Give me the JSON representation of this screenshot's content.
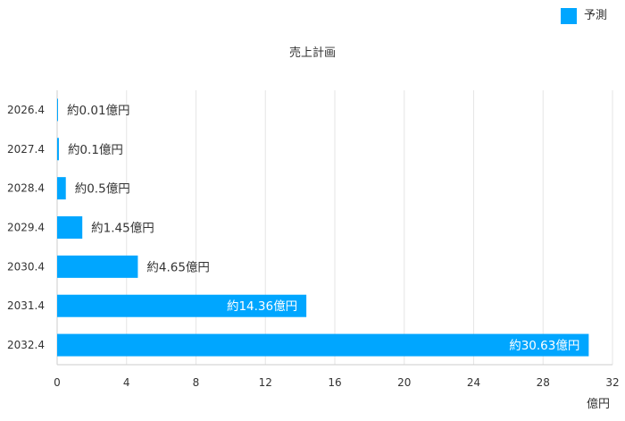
{
  "legend": {
    "label": "予測",
    "color": "#00A6FF"
  },
  "chart_data": {
    "type": "bar",
    "orientation": "horizontal",
    "title": "売上計画",
    "xlabel": "億円",
    "ylabel": "",
    "categories": [
      "2026.4",
      "2027.4",
      "2028.4",
      "2029.4",
      "2030.4",
      "2031.4",
      "2032.4"
    ],
    "series": [
      {
        "name": "予測",
        "values": [
          0.01,
          0.1,
          0.5,
          1.45,
          4.65,
          14.36,
          30.63
        ],
        "labels": [
          "約0.01億円",
          "約0.1億円",
          "約0.5億円",
          "約1.45億円",
          "約4.65億円",
          "約14.36億円",
          "約30.63億円"
        ]
      }
    ],
    "xlim": [
      0,
      32
    ],
    "xticks": [
      0,
      4,
      8,
      12,
      16,
      20,
      24,
      28,
      32
    ],
    "grid": true,
    "legend_position": "top-right"
  }
}
